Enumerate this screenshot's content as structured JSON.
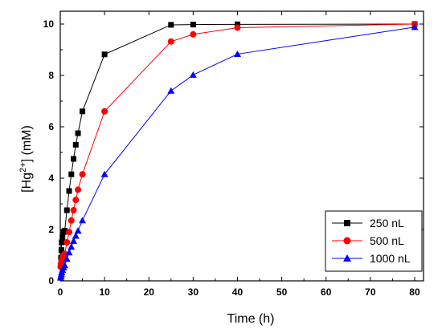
{
  "chart_data": {
    "type": "scatter",
    "xlabel": "Time (h)",
    "ylabel_prefix": "[Hg",
    "ylabel_sup": "2+",
    "ylabel_suffix": "] (mM)",
    "xlim": [
      0,
      82
    ],
    "ylim": [
      0,
      10.5
    ],
    "xticks": [
      0,
      10,
      20,
      30,
      40,
      50,
      60,
      70,
      80
    ],
    "yticks": [
      0,
      2,
      4,
      6,
      8,
      10
    ],
    "grid": false,
    "legend_position": "bottom-right",
    "series": [
      {
        "name": "250 nL",
        "color": "#000000",
        "marker": "square",
        "x": [
          0.08,
          0.17,
          0.25,
          0.33,
          0.5,
          0.75,
          1,
          1.5,
          2,
          2.5,
          3,
          3.5,
          4,
          5,
          10,
          25,
          30,
          40,
          80
        ],
        "y": [
          0.6,
          0.9,
          1.2,
          1.5,
          1.7,
          1.9,
          1.95,
          2.75,
          3.5,
          4.15,
          4.75,
          5.3,
          5.75,
          6.6,
          8.82,
          9.97,
          9.98,
          9.99,
          10.0
        ]
      },
      {
        "name": "500 nL",
        "color": "#ff0000",
        "marker": "circle",
        "x": [
          0.08,
          0.17,
          0.25,
          0.33,
          0.5,
          0.75,
          1,
          1.5,
          2,
          2.5,
          3,
          3.5,
          4,
          5,
          10,
          25,
          30,
          40,
          80
        ],
        "y": [
          0.55,
          0.65,
          0.72,
          0.8,
          0.9,
          1.0,
          1.05,
          1.5,
          1.9,
          2.35,
          2.75,
          3.15,
          3.55,
          4.15,
          6.6,
          9.32,
          9.6,
          9.86,
          10.0
        ]
      },
      {
        "name": "1000 nL",
        "color": "#0000ff",
        "marker": "triangle",
        "x": [
          0.08,
          0.17,
          0.25,
          0.33,
          0.5,
          0.75,
          1,
          1.5,
          2,
          2.5,
          3,
          3.5,
          4,
          5,
          10,
          25,
          30,
          40,
          80
        ],
        "y": [
          0.12,
          0.18,
          0.25,
          0.33,
          0.42,
          0.52,
          0.6,
          0.85,
          1.1,
          1.32,
          1.55,
          1.75,
          1.95,
          2.35,
          4.15,
          7.4,
          8.02,
          8.83,
          9.88
        ]
      }
    ]
  }
}
